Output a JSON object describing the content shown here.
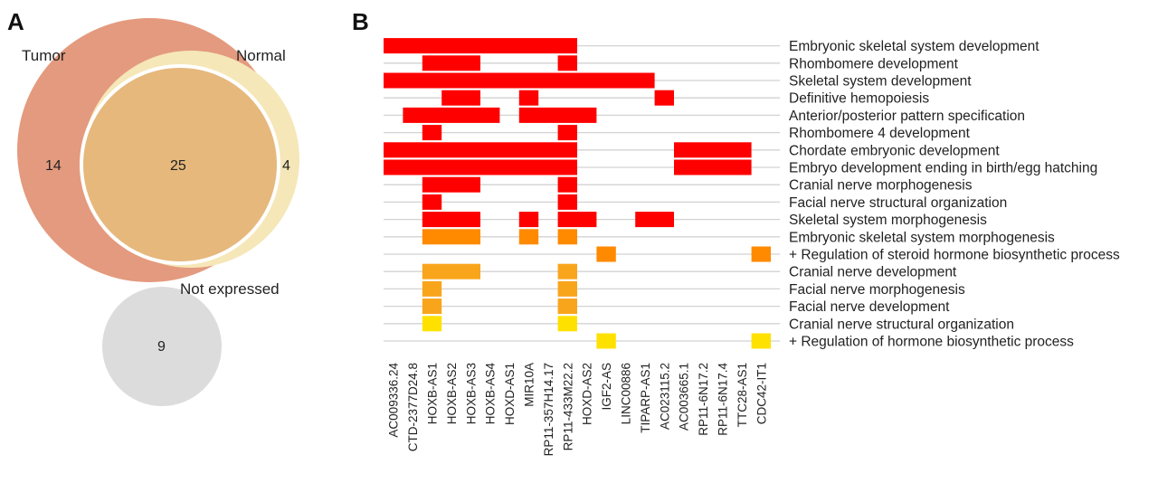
{
  "panels": {
    "a": "A",
    "b": "B"
  },
  "chart_data": [
    {
      "type": "venn",
      "sets": [
        {
          "name": "Tumor",
          "only": 14,
          "color": "#e49a7e"
        },
        {
          "name": "Normal",
          "only": 4,
          "color": "#f5e7b8"
        }
      ],
      "intersection": 25,
      "intersection_color": "#e6b87c",
      "separate_set": {
        "name": "Not expressed",
        "count": 9,
        "color": "#dcdcdc"
      }
    },
    {
      "type": "heatmap",
      "columns": [
        "AC009336.24",
        "CTD-2377D24.8",
        "HOXB-AS1",
        "HOXB-AS2",
        "HOXB-AS3",
        "HOXB-AS4",
        "HOXD-AS1",
        "MIR10A",
        "RP11-357H14.17",
        "RP11-433M22.2",
        "HOXD-AS2",
        "IGF2-AS",
        "LINC00886",
        "TIPARP-AS1",
        "AC023115.2",
        "AC003665.1",
        "RP11-6N17.2",
        "RP11-6N17.4",
        "TTC28-AS1",
        "CDC42-IT1"
      ],
      "rows": [
        "Embryonic skeletal system development",
        "Rhombomere development",
        "Skeletal system development",
        "Definitive hemopoiesis",
        "Anterior/posterior pattern specification",
        "Rhombomere 4 development",
        "Chordate embryonic development",
        "Embryo development ending in birth/egg hatching",
        "Cranial nerve morphogenesis",
        "Facial nerve structural organization",
        "Skeletal system morphogenesis",
        "Embryonic skeletal system morphogenesis",
        "+ Regulation of steroid hormone biosynthetic process",
        "Cranial nerve development",
        "Facial nerve morphogenesis",
        "Facial nerve development",
        "Cranial nerve structural organization",
        "+ Regulation of hormone biosynthetic process"
      ],
      "colors": {
        "1": "#ff0000",
        "2": "#ff8a00",
        "3": "#f9a51c",
        "4": "#ffe100"
      },
      "matrix": [
        [
          1,
          1,
          1,
          1,
          1,
          1,
          1,
          1,
          1,
          1,
          0,
          0,
          0,
          0,
          0,
          0,
          0,
          0,
          0,
          0
        ],
        [
          0,
          0,
          1,
          1,
          1,
          0,
          0,
          0,
          0,
          1,
          0,
          0,
          0,
          0,
          0,
          0,
          0,
          0,
          0,
          0
        ],
        [
          1,
          1,
          1,
          1,
          1,
          1,
          1,
          1,
          1,
          1,
          1,
          1,
          1,
          1,
          0,
          0,
          0,
          0,
          0,
          0
        ],
        [
          0,
          0,
          0,
          1,
          1,
          0,
          0,
          1,
          0,
          0,
          0,
          0,
          0,
          0,
          1,
          0,
          0,
          0,
          0,
          0
        ],
        [
          0,
          1,
          1,
          1,
          1,
          1,
          0,
          1,
          1,
          1,
          1,
          0,
          0,
          0,
          0,
          0,
          0,
          0,
          0,
          0
        ],
        [
          0,
          0,
          1,
          0,
          0,
          0,
          0,
          0,
          0,
          1,
          0,
          0,
          0,
          0,
          0,
          0,
          0,
          0,
          0,
          0
        ],
        [
          1,
          1,
          1,
          1,
          1,
          1,
          1,
          1,
          1,
          1,
          0,
          0,
          0,
          0,
          0,
          1,
          1,
          1,
          1,
          0
        ],
        [
          1,
          1,
          1,
          1,
          1,
          1,
          1,
          1,
          1,
          1,
          0,
          0,
          0,
          0,
          0,
          1,
          1,
          1,
          1,
          0
        ],
        [
          0,
          0,
          1,
          1,
          1,
          0,
          0,
          0,
          0,
          1,
          0,
          0,
          0,
          0,
          0,
          0,
          0,
          0,
          0,
          0
        ],
        [
          0,
          0,
          1,
          0,
          0,
          0,
          0,
          0,
          0,
          1,
          0,
          0,
          0,
          0,
          0,
          0,
          0,
          0,
          0,
          0
        ],
        [
          0,
          0,
          1,
          1,
          1,
          0,
          0,
          1,
          0,
          1,
          1,
          0,
          0,
          1,
          1,
          0,
          0,
          0,
          0,
          0
        ],
        [
          0,
          0,
          2,
          2,
          2,
          0,
          0,
          2,
          0,
          2,
          0,
          0,
          0,
          0,
          0,
          0,
          0,
          0,
          0,
          0
        ],
        [
          0,
          0,
          0,
          0,
          0,
          0,
          0,
          0,
          0,
          0,
          0,
          2,
          0,
          0,
          0,
          0,
          0,
          0,
          0,
          2
        ],
        [
          0,
          0,
          3,
          3,
          3,
          0,
          0,
          0,
          0,
          3,
          0,
          0,
          0,
          0,
          0,
          0,
          0,
          0,
          0,
          0
        ],
        [
          0,
          0,
          3,
          0,
          0,
          0,
          0,
          0,
          0,
          3,
          0,
          0,
          0,
          0,
          0,
          0,
          0,
          0,
          0,
          0
        ],
        [
          0,
          0,
          3,
          0,
          0,
          0,
          0,
          0,
          0,
          3,
          0,
          0,
          0,
          0,
          0,
          0,
          0,
          0,
          0,
          0
        ],
        [
          0,
          0,
          4,
          0,
          0,
          0,
          0,
          0,
          0,
          4,
          0,
          0,
          0,
          0,
          0,
          0,
          0,
          0,
          0,
          0
        ],
        [
          0,
          0,
          0,
          0,
          0,
          0,
          0,
          0,
          0,
          0,
          0,
          4,
          0,
          0,
          0,
          0,
          0,
          0,
          0,
          4
        ]
      ]
    }
  ]
}
